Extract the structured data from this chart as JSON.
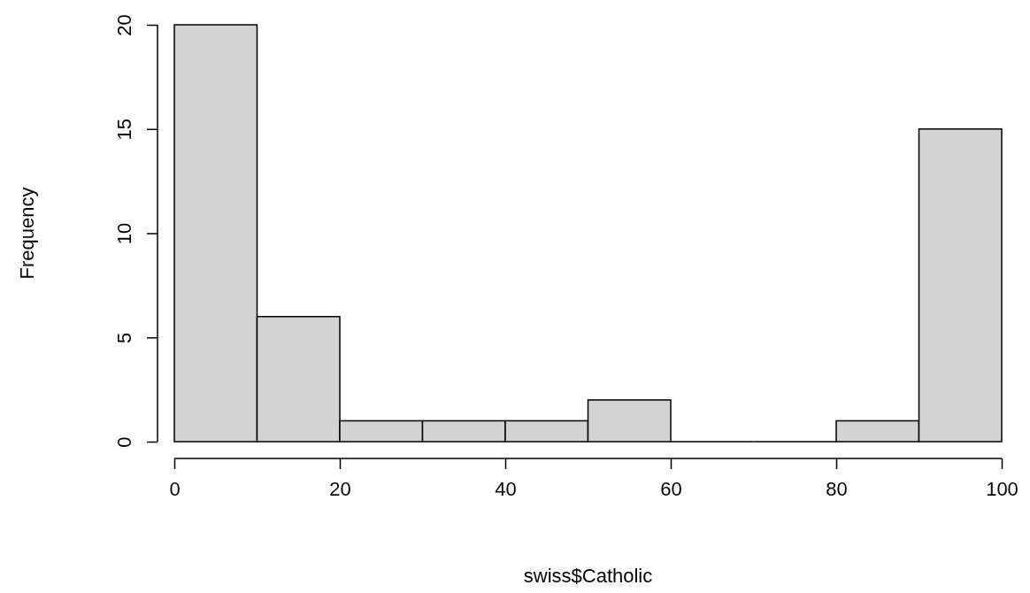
{
  "chart_data": {
    "type": "histogram",
    "xlabel": "swiss$Catholic",
    "ylabel": "Frequency",
    "bins": [
      0,
      10,
      20,
      30,
      40,
      50,
      60,
      70,
      80,
      90,
      100
    ],
    "values": [
      20,
      6,
      1,
      1,
      1,
      2,
      0,
      0,
      1,
      15
    ],
    "color": "#d3d3d3",
    "xlim": [
      0,
      100
    ],
    "xticks": [
      0,
      20,
      40,
      60,
      80,
      100
    ],
    "ylim": [
      0,
      20
    ],
    "yticks": [
      0,
      5,
      10,
      15,
      20
    ],
    "grid": false
  }
}
